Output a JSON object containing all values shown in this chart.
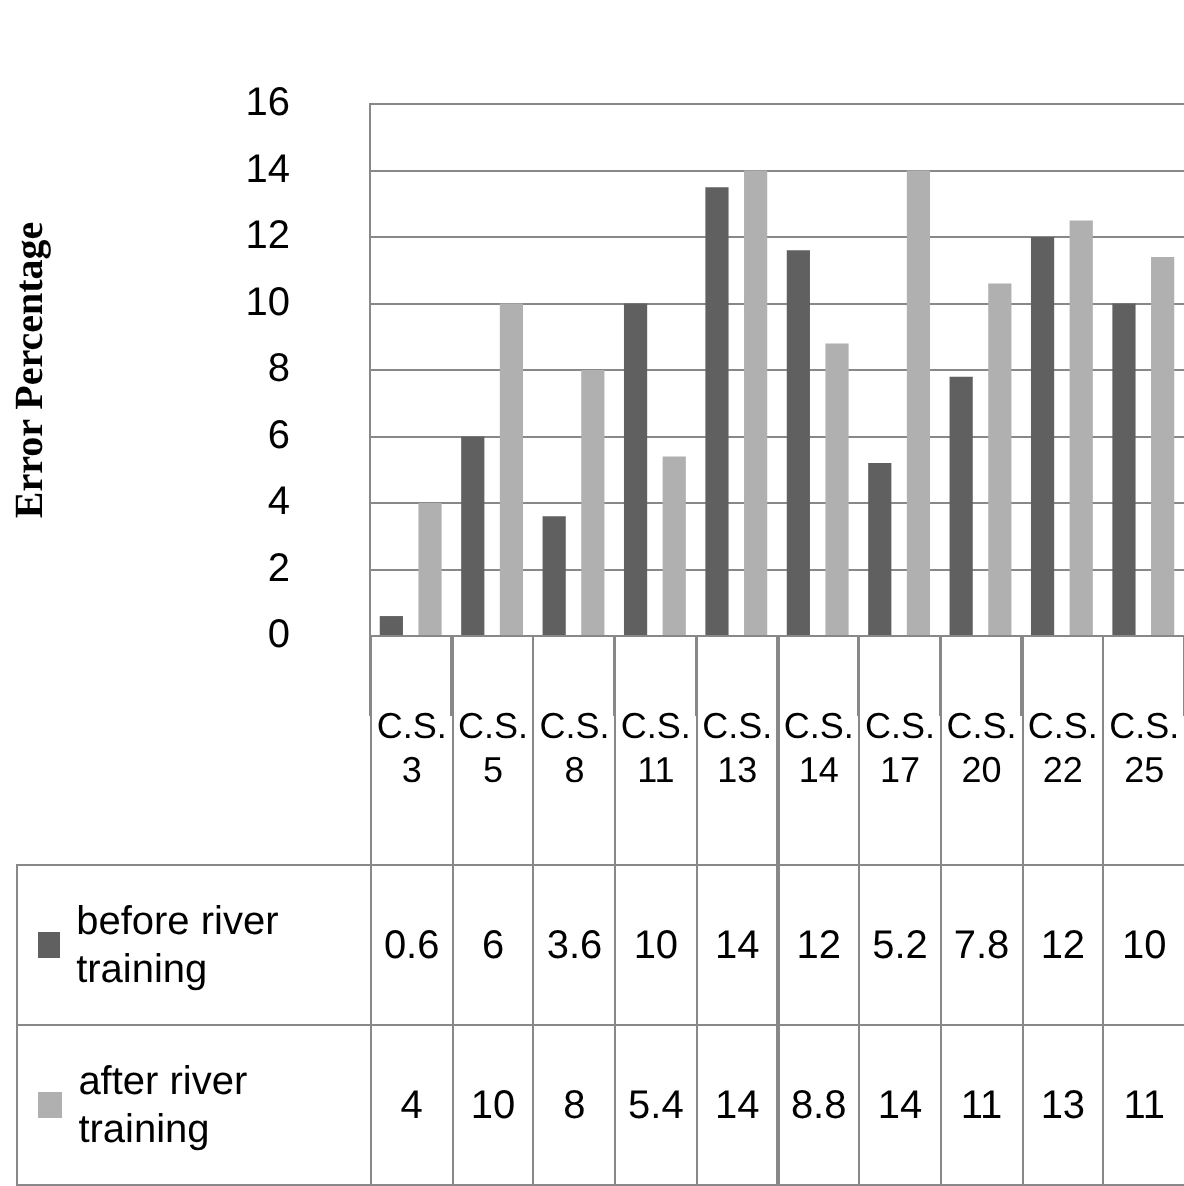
{
  "chart_data": {
    "type": "bar",
    "ylabel": "Error Percentage",
    "categories": [
      "C.S.3",
      "C.S.5",
      "C.S.8",
      "C.S.11",
      "C.S.13",
      "C.S.14",
      "C.S.17",
      "C.S.20",
      "C.S.22",
      "C.S.25"
    ],
    "series": [
      {
        "name": "before river training",
        "color": "#606060",
        "values": [
          0.6,
          6,
          3.6,
          10,
          13.5,
          11.6,
          5.2,
          7.8,
          12,
          10
        ],
        "value_labels": [
          "0.6",
          "6",
          "3.6",
          "10",
          "14",
          "12",
          "5.2",
          "7.8",
          "12",
          "10"
        ]
      },
      {
        "name": "after river training",
        "color": "#b0b0b0",
        "values": [
          4,
          10,
          8,
          5.4,
          14,
          8.8,
          14,
          10.6,
          12.5,
          11.4
        ],
        "value_labels": [
          "4",
          "10",
          "8",
          "5.4",
          "14",
          "8.8",
          "14",
          "11",
          "13",
          "11"
        ]
      }
    ],
    "ylim": [
      0,
      16
    ],
    "yticks": [
      0,
      2,
      4,
      6,
      8,
      10,
      12,
      14,
      16
    ],
    "grid": "y",
    "legend": "bottom"
  }
}
